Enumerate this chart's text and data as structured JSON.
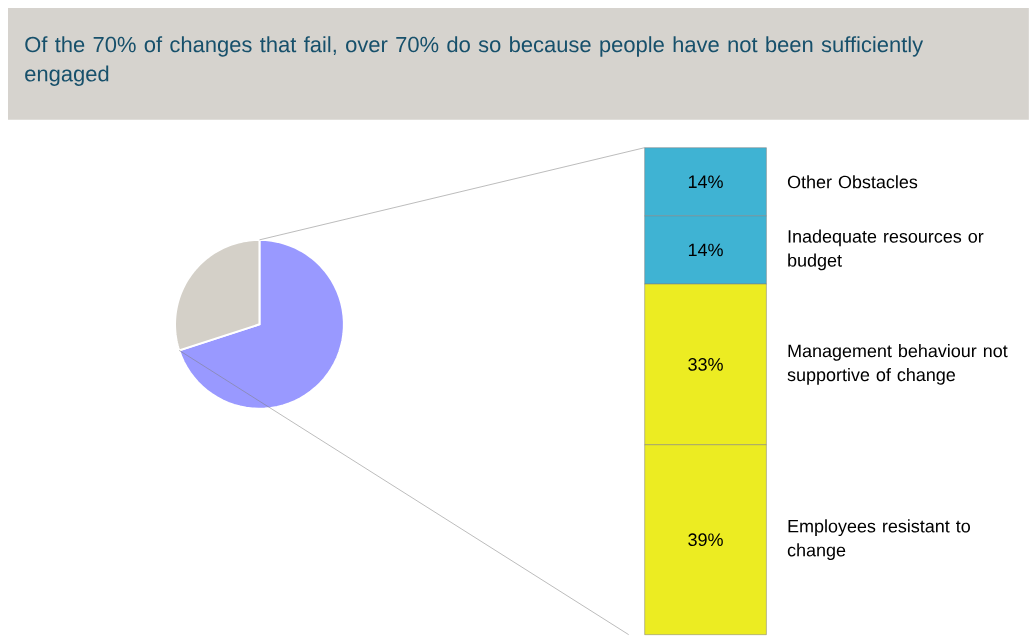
{
  "chart_data": [
    {
      "type": "pie",
      "title": "Of the 70% of changes that fail, over 70% do so because people have not been sufficiently engaged",
      "categories": [
        null,
        null
      ],
      "values": [
        70,
        30
      ],
      "colors": [
        "#9999ff",
        "#d4d0c8"
      ]
    },
    {
      "type": "bar",
      "stacked": true,
      "categories": [
        null
      ],
      "series": [
        {
          "name": "Employees resistant to change",
          "color": "#ecec22",
          "values": [
            39
          ],
          "value_labels": [
            "39%"
          ]
        },
        {
          "name": "Management behaviour not supportive of change",
          "color": "#ecec22",
          "values": [
            33
          ],
          "value_labels": [
            "33%"
          ]
        },
        {
          "name": "Inadequate resources or budget",
          "color": "#3fb3d3",
          "values": [
            14
          ],
          "value_labels": [
            "14%"
          ]
        },
        {
          "name": "Other Obstacles",
          "color": "#3fb3d3",
          "values": [
            14
          ],
          "value_labels": [
            "14%"
          ]
        }
      ]
    }
  ]
}
